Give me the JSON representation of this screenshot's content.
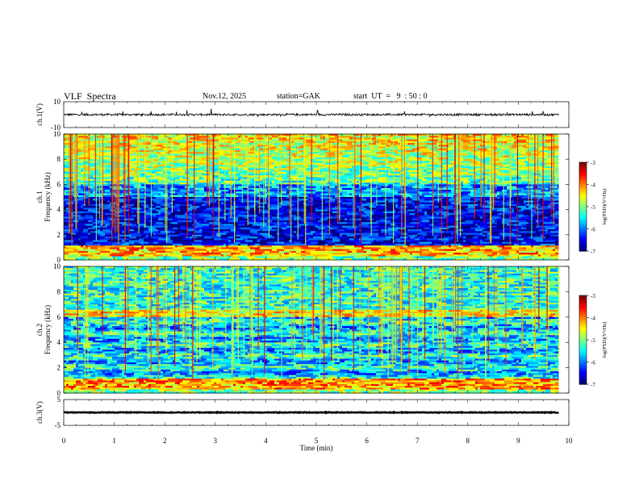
{
  "header": {
    "title": "VLF  Spectra",
    "date": "Nov.12, 2025",
    "station": "station=GAK",
    "start_ut": "start  UT  =   9  : 50 : 0"
  },
  "chart_data": {
    "type": "heatmap",
    "x_axis": {
      "label": "Time  (min)",
      "range": [
        0,
        10
      ],
      "ticks": [
        "0",
        "1",
        "2",
        "3",
        "4",
        "5",
        "6",
        "7",
        "8",
        "9",
        "10"
      ]
    },
    "panels": [
      {
        "id": "ch1-waveform",
        "type": "line",
        "ylabel": "ch.1(V)",
        "ylim": [
          -10,
          10
        ],
        "ticks": [
          "10",
          "-10"
        ],
        "baseline": 0,
        "data_end_min": 9.8
      },
      {
        "id": "ch1-spectrogram",
        "type": "heatmap",
        "ylabel": "ch.1\nFrequency  (kHz)",
        "ylim": [
          0,
          10
        ],
        "ticks": [
          "0",
          "2",
          "4",
          "6",
          "8",
          "10"
        ],
        "data_end_min": 9.8,
        "colorbar": {
          "label": "log(PSD)(V²/Hz)",
          "range": [
            -7,
            -3
          ],
          "ticks": [
            "-3",
            "-4",
            "-5",
            "-6",
            "-7"
          ]
        }
      },
      {
        "id": "ch2-spectrogram",
        "type": "heatmap",
        "ylabel": "ch.2\nFrequency  (kHz)",
        "ylim": [
          0,
          10
        ],
        "ticks": [
          "0",
          "2",
          "4",
          "6",
          "8",
          "10"
        ],
        "data_end_min": 9.8,
        "colorbar": {
          "label": "log(PSD)(V²/Hz)",
          "range": [
            -7,
            -3
          ],
          "ticks": [
            "-3",
            "-4",
            "-5",
            "-6",
            "-7"
          ]
        }
      },
      {
        "id": "ch3-waveform",
        "type": "line",
        "ylabel": "ch.3(V)",
        "ylim": [
          -5,
          5
        ],
        "ticks": [
          "5",
          "-5"
        ],
        "baseline": 0,
        "data_end_min": 9.8
      }
    ]
  }
}
